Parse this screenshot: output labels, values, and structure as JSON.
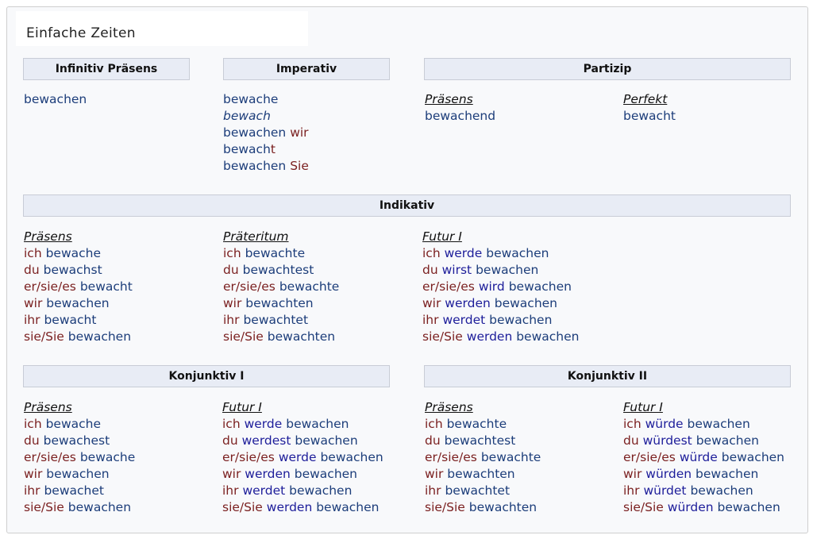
{
  "title": "Einfache Zeiten",
  "headers": {
    "infinitiv": "Infinitiv Präsens",
    "imperativ": "Imperativ",
    "partizip": "Partizip",
    "indikativ": "Indikativ",
    "konj1": "Konjunktiv I",
    "konj2": "Konjunktiv II"
  },
  "infinitiv": {
    "form": "bewachen"
  },
  "imperativ": {
    "line1": "bewache",
    "line2": "bewach",
    "line3_verb": "bewachen",
    "line3_pron": "wir",
    "line4_verb": "bewach",
    "line4_end": "t",
    "line5_verb": "bewachen",
    "line5_pron": "Sie"
  },
  "partizip": {
    "praesens_label": "Präsens",
    "praesens_form": "bewachend",
    "perfekt_label": "Perfekt",
    "perfekt_form": "bewacht"
  },
  "indikativ": {
    "praesens": {
      "label": "Präsens",
      "rows": [
        {
          "pron": "ich",
          "verb": "bewache"
        },
        {
          "pron": "du",
          "verb": "bewachst"
        },
        {
          "pron": "er/sie/es",
          "verb": "bewacht"
        },
        {
          "pron": "wir",
          "verb": "bewachen"
        },
        {
          "pron": "ihr",
          "verb": "bewacht"
        },
        {
          "pron": "sie/Sie",
          "verb": "bewachen"
        }
      ]
    },
    "praeteritum": {
      "label": "Präteritum",
      "rows": [
        {
          "pron": "ich",
          "verb": "bewachte"
        },
        {
          "pron": "du",
          "verb": "bewachtest"
        },
        {
          "pron": "er/sie/es",
          "verb": "bewachte"
        },
        {
          "pron": "wir",
          "verb": "bewachten"
        },
        {
          "pron": "ihr",
          "verb": "bewachtet"
        },
        {
          "pron": "sie/Sie",
          "verb": "bewachten"
        }
      ]
    },
    "futur1": {
      "label": "Futur I",
      "rows": [
        {
          "pron": "ich",
          "aux": "werde",
          "verb": "bewachen"
        },
        {
          "pron": "du",
          "aux": "wirst",
          "verb": "bewachen"
        },
        {
          "pron": "er/sie/es",
          "aux": "wird",
          "verb": "bewachen"
        },
        {
          "pron": "wir",
          "aux": "werden",
          "verb": "bewachen"
        },
        {
          "pron": "ihr",
          "aux": "werdet",
          "verb": "bewachen"
        },
        {
          "pron": "sie/Sie",
          "aux": "werden",
          "verb": "bewachen"
        }
      ]
    }
  },
  "konj1": {
    "praesens": {
      "label": "Präsens",
      "rows": [
        {
          "pron": "ich",
          "verb": "bewache"
        },
        {
          "pron": "du",
          "verb": "bewachest"
        },
        {
          "pron": "er/sie/es",
          "verb": "bewache"
        },
        {
          "pron": "wir",
          "verb": "bewachen"
        },
        {
          "pron": "ihr",
          "verb": "bewachet"
        },
        {
          "pron": "sie/Sie",
          "verb": "bewachen"
        }
      ]
    },
    "futur1": {
      "label": "Futur I",
      "rows": [
        {
          "pron": "ich",
          "aux": "werde",
          "verb": "bewachen"
        },
        {
          "pron": "du",
          "aux": "werdest",
          "verb": "bewachen"
        },
        {
          "pron": "er/sie/es",
          "aux": "werde",
          "verb": "bewachen"
        },
        {
          "pron": "wir",
          "aux": "werden",
          "verb": "bewachen"
        },
        {
          "pron": "ihr",
          "aux": "werdet",
          "verb": "bewachen"
        },
        {
          "pron": "sie/Sie",
          "aux": "werden",
          "verb": "bewachen"
        }
      ]
    }
  },
  "konj2": {
    "praesens": {
      "label": "Präsens",
      "rows": [
        {
          "pron": "ich",
          "verb": "bewachte"
        },
        {
          "pron": "du",
          "verb": "bewachtest"
        },
        {
          "pron": "er/sie/es",
          "verb": "bewachte"
        },
        {
          "pron": "wir",
          "verb": "bewachten"
        },
        {
          "pron": "ihr",
          "verb": "bewachtet"
        },
        {
          "pron": "sie/Sie",
          "verb": "bewachten"
        }
      ]
    },
    "futur1": {
      "label": "Futur I",
      "rows": [
        {
          "pron": "ich",
          "aux": "würde",
          "verb": "bewachen"
        },
        {
          "pron": "du",
          "aux": "würdest",
          "verb": "bewachen"
        },
        {
          "pron": "er/sie/es",
          "aux": "würde",
          "verb": "bewachen"
        },
        {
          "pron": "wir",
          "aux": "würden",
          "verb": "bewachen"
        },
        {
          "pron": "ihr",
          "aux": "würdet",
          "verb": "bewachen"
        },
        {
          "pron": "sie/Sie",
          "aux": "würden",
          "verb": "bewachen"
        }
      ]
    }
  }
}
